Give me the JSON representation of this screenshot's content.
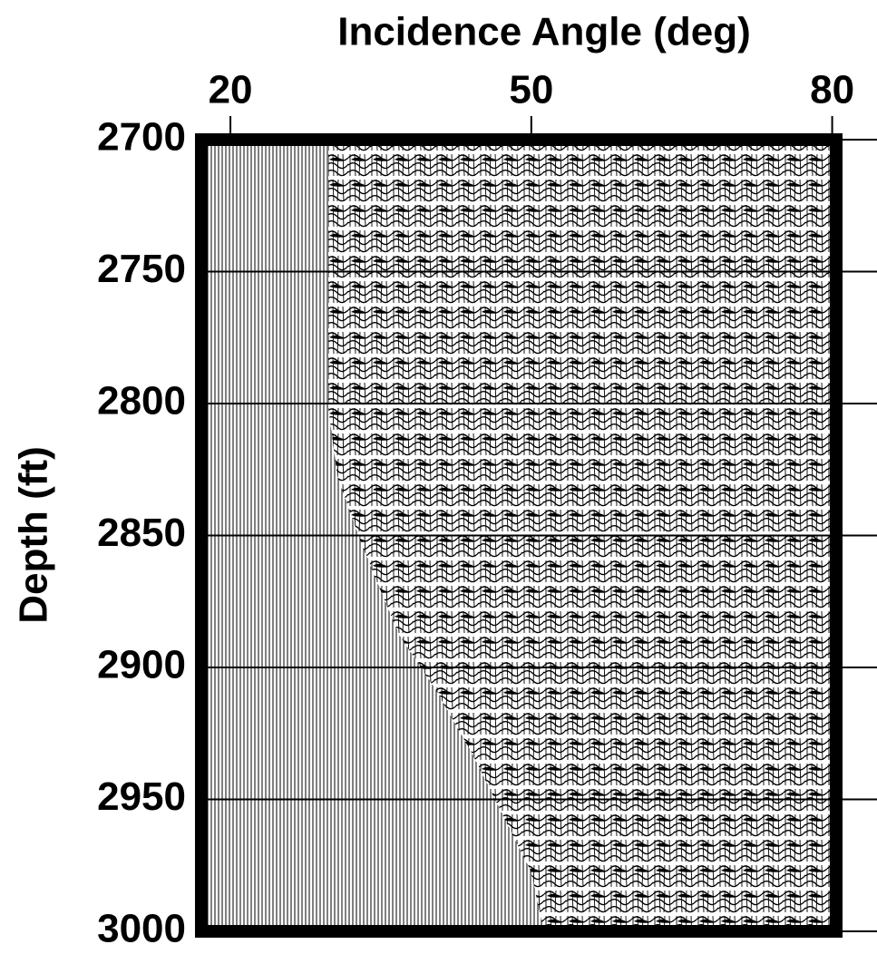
{
  "chart_data": {
    "type": "seismic",
    "title": "Incidence Angle (deg)",
    "y_label": "Depth (ft)",
    "xlim": [
      17.1,
      80.4
    ],
    "xticks": [
      20,
      50,
      80
    ],
    "ylim": [
      2700,
      3000
    ],
    "yticks": [
      2700,
      2750,
      2800,
      2850,
      2900,
      2950,
      3000
    ],
    "y_reversed": true,
    "grid": true,
    "color": "#000000"
  }
}
